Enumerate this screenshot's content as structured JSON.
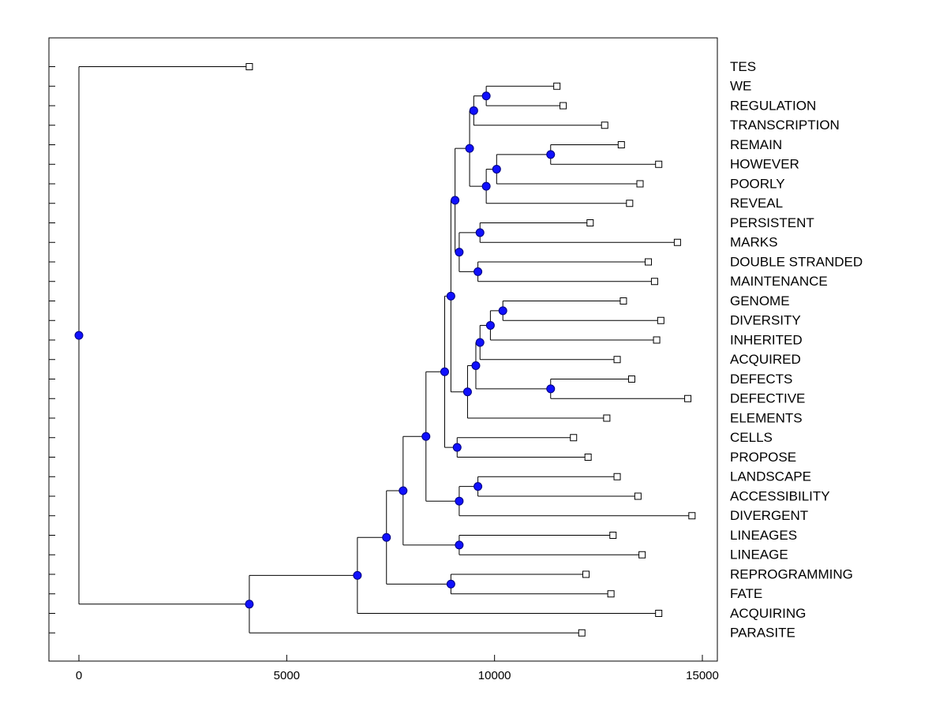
{
  "chart_data": {
    "type": "dendrogram",
    "x_ticks": [
      0,
      5000,
      10000,
      15000
    ],
    "xlim": [
      -700,
      15300
    ],
    "leaves": [
      {
        "label": "TES",
        "x": 4100
      },
      {
        "label": "WE",
        "x": 11500
      },
      {
        "label": "REGULATION",
        "x": 11650
      },
      {
        "label": "TRANSCRIPTION",
        "x": 12650
      },
      {
        "label": "REMAIN",
        "x": 13050
      },
      {
        "label": "HOWEVER",
        "x": 13950
      },
      {
        "label": "POORLY",
        "x": 13500
      },
      {
        "label": "REVEAL",
        "x": 13250
      },
      {
        "label": "PERSISTENT",
        "x": 12300
      },
      {
        "label": "MARKS",
        "x": 14400
      },
      {
        "label": "DOUBLE STRANDED",
        "x": 13700
      },
      {
        "label": "MAINTENANCE",
        "x": 13850
      },
      {
        "label": "GENOME",
        "x": 13100
      },
      {
        "label": "DIVERSITY",
        "x": 14000
      },
      {
        "label": "INHERITED",
        "x": 13900
      },
      {
        "label": "ACQUIRED",
        "x": 12950
      },
      {
        "label": "DEFECTS",
        "x": 13300
      },
      {
        "label": "DEFECTIVE",
        "x": 14650
      },
      {
        "label": "ELEMENTS",
        "x": 12700
      },
      {
        "label": "CELLS",
        "x": 11900
      },
      {
        "label": "PROPOSE",
        "x": 12250
      },
      {
        "label": "LANDSCAPE",
        "x": 12950
      },
      {
        "label": "ACCESSIBILITY",
        "x": 13450
      },
      {
        "label": "DIVERGENT",
        "x": 14750
      },
      {
        "label": "LINEAGES",
        "x": 12850
      },
      {
        "label": "LINEAGE",
        "x": 13550
      },
      {
        "label": "REPROGRAMMING",
        "x": 12200
      },
      {
        "label": "FATE",
        "x": 12800
      },
      {
        "label": "ACQUIRING",
        "x": 13950
      },
      {
        "label": "PARASITE",
        "x": 12100
      }
    ],
    "merges": [
      {
        "a": "L1",
        "b": "L2",
        "x": 9800
      },
      {
        "a": "N0",
        "b": "L3",
        "x": 9500
      },
      {
        "a": "L5",
        "b": "L4",
        "x": 11350
      },
      {
        "a": "N2",
        "b": "L6",
        "x": 10050
      },
      {
        "a": "N3",
        "b": "L7",
        "x": 9800
      },
      {
        "a": "N1",
        "b": "N4",
        "x": 9400
      },
      {
        "a": "L8",
        "b": "L9",
        "x": 9650
      },
      {
        "a": "L10",
        "b": "L11",
        "x": 9600
      },
      {
        "a": "N6",
        "b": "N7",
        "x": 9150
      },
      {
        "a": "N5",
        "b": "N8",
        "x": 9050
      },
      {
        "a": "L12",
        "b": "L13",
        "x": 10200
      },
      {
        "a": "N10",
        "b": "L14",
        "x": 9900
      },
      {
        "a": "N11",
        "b": "L15",
        "x": 9650
      },
      {
        "a": "L16",
        "b": "L17",
        "x": 11350
      },
      {
        "a": "N12",
        "b": "N13",
        "x": 9550
      },
      {
        "a": "N14",
        "b": "L18",
        "x": 9350
      },
      {
        "a": "N9",
        "b": "N15",
        "x": 8950
      },
      {
        "a": "L19",
        "b": "L20",
        "x": 9100
      },
      {
        "a": "N16",
        "b": "N17",
        "x": 8800
      },
      {
        "a": "L21",
        "b": "L22",
        "x": 9600
      },
      {
        "a": "N19",
        "b": "L23",
        "x": 9150
      },
      {
        "a": "N18",
        "b": "N20",
        "x": 8350
      },
      {
        "a": "L24",
        "b": "L25",
        "x": 9150
      },
      {
        "a": "N21",
        "b": "N22",
        "x": 7800
      },
      {
        "a": "L26",
        "b": "L27",
        "x": 8950
      },
      {
        "a": "N23",
        "b": "N24",
        "x": 7400
      },
      {
        "a": "N25",
        "b": "L28",
        "x": 6700
      },
      {
        "a": "N26",
        "b": "L29",
        "x": 4100
      },
      {
        "a": "L0",
        "b": "N27",
        "x": 0
      }
    ]
  }
}
